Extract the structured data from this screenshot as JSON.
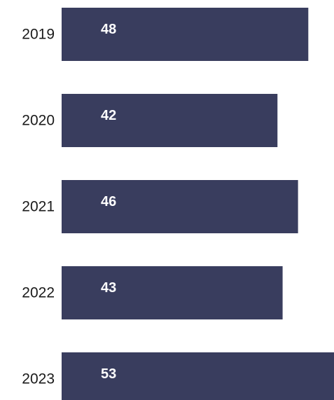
{
  "chart_data": {
    "type": "bar",
    "orientation": "horizontal",
    "categories": [
      "2019",
      "2020",
      "2021",
      "2022",
      "2023"
    ],
    "values": [
      48,
      42,
      46,
      43,
      53
    ],
    "data_labels": [
      "48",
      "42",
      "46",
      "43",
      "53"
    ],
    "bar_color": "#393d5e",
    "label_color": "#ffffff",
    "grid": false,
    "legend": "none"
  }
}
